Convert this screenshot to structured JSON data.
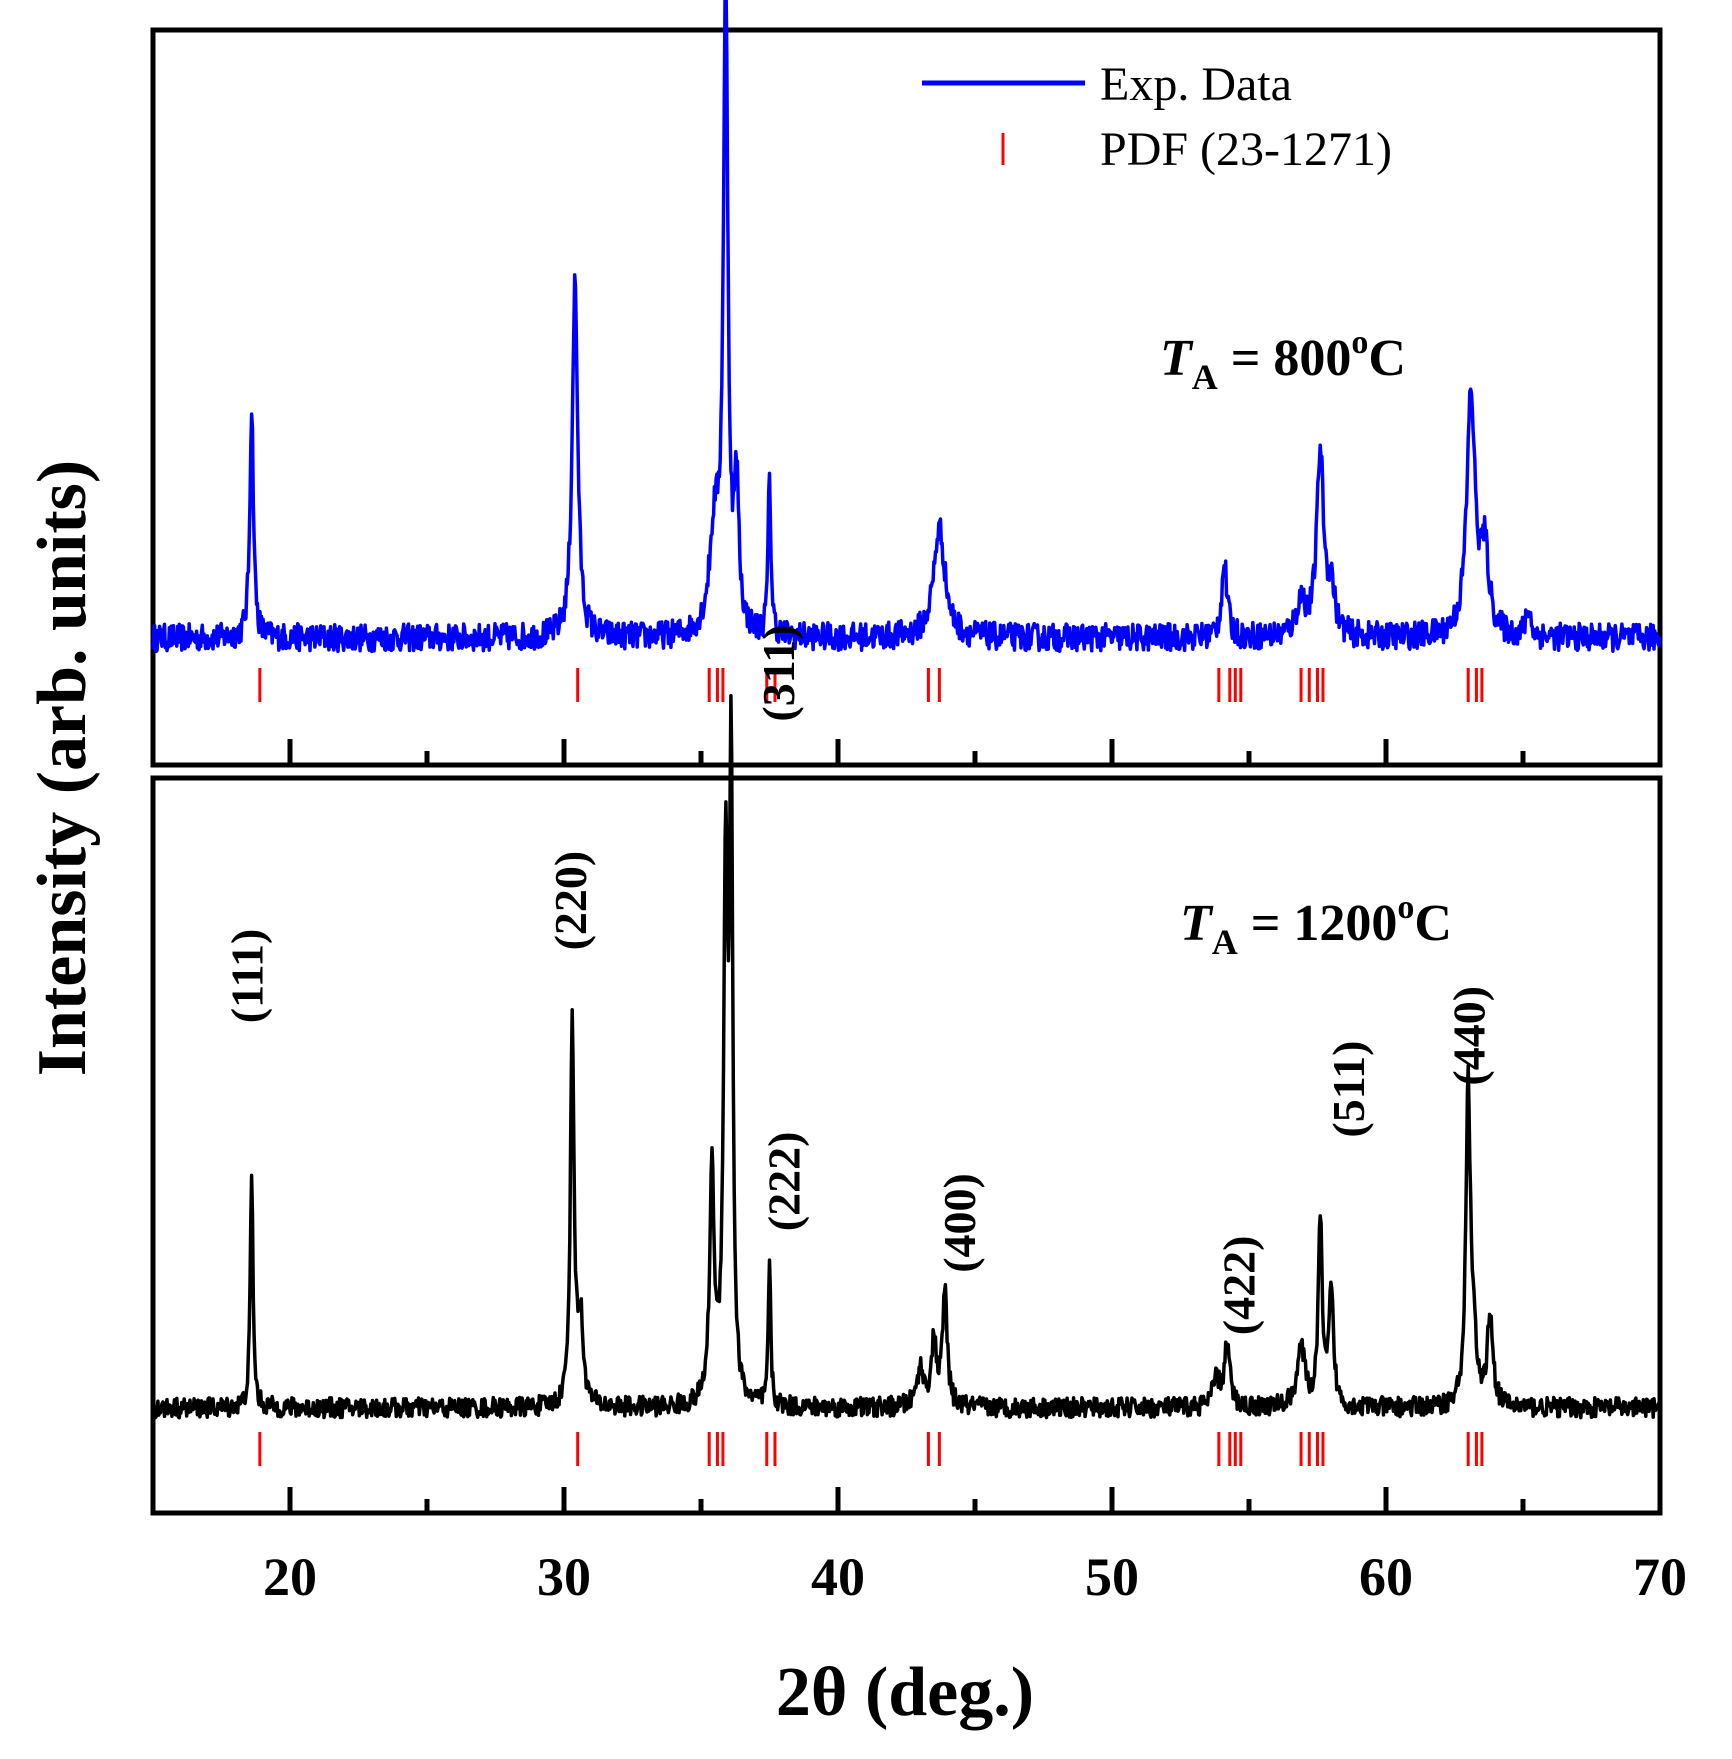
{
  "chart_data": {
    "type": "line",
    "xlabel": "2θ (deg.)",
    "ylabel": "Intensity (arb. units)",
    "xlim": [
      15,
      70
    ],
    "xticks": [
      20,
      30,
      40,
      50,
      60,
      70
    ],
    "x_minor_ticks": [
      25,
      35,
      45,
      55,
      65
    ],
    "legend": [
      {
        "label": "Exp. Data",
        "color": "#0000ff",
        "style": "line"
      },
      {
        "label": "PDF (23-1271)",
        "color": "#ff0000",
        "style": "tick"
      }
    ],
    "reference_lines": [
      18.9,
      30.5,
      35.3,
      35.6,
      35.8,
      37.4,
      37.7,
      43.3,
      43.7,
      53.9,
      54.3,
      54.5,
      54.7,
      56.9,
      57.2,
      57.5,
      57.7,
      63.0,
      63.3,
      63.5
    ],
    "panels": [
      {
        "name": "800",
        "annotation_T": "T",
        "annotation_sub": "A",
        "annotation_value": " = 800",
        "annotation_sup": "o",
        "annotation_unit": "C",
        "color": "#0000ff",
        "baseline": 0.1,
        "noise": 0.01,
        "peaks": [
          {
            "x": 18.6,
            "height": 1.0,
            "width": 0.08
          },
          {
            "x": 30.4,
            "height": 1.55,
            "width": 0.12
          },
          {
            "x": 35.5,
            "height": 0.45,
            "width": 0.22
          },
          {
            "x": 35.9,
            "height": 2.75,
            "width": 0.1
          },
          {
            "x": 36.3,
            "height": 0.6,
            "width": 0.1
          },
          {
            "x": 37.5,
            "height": 0.7,
            "width": 0.06
          },
          {
            "x": 43.7,
            "height": 0.48,
            "width": 0.25
          },
          {
            "x": 54.1,
            "height": 0.32,
            "width": 0.12
          },
          {
            "x": 56.9,
            "height": 0.15,
            "width": 0.2
          },
          {
            "x": 57.6,
            "height": 0.8,
            "width": 0.15
          },
          {
            "x": 58.0,
            "height": 0.2,
            "width": 0.15
          },
          {
            "x": 63.1,
            "height": 1.05,
            "width": 0.18
          },
          {
            "x": 63.6,
            "height": 0.35,
            "width": 0.18
          },
          {
            "x": 65.2,
            "height": 0.12,
            "width": 0.1
          }
        ]
      },
      {
        "name": "1200",
        "annotation_T": "T",
        "annotation_sub": "A",
        "annotation_value": " = 1200",
        "annotation_sup": "o",
        "annotation_unit": "C",
        "color": "#000000",
        "baseline": 0.1,
        "noise": 0.008,
        "peaks": [
          {
            "x": 18.6,
            "height": 1.12,
            "width": 0.06
          },
          {
            "x": 30.3,
            "height": 1.85,
            "width": 0.08
          },
          {
            "x": 30.6,
            "height": 0.4,
            "width": 0.12
          },
          {
            "x": 35.4,
            "height": 1.1,
            "width": 0.1
          },
          {
            "x": 35.9,
            "height": 2.55,
            "width": 0.09
          },
          {
            "x": 36.1,
            "height": 3.0,
            "width": 0.07
          },
          {
            "x": 37.5,
            "height": 0.72,
            "width": 0.05
          },
          {
            "x": 43.0,
            "height": 0.18,
            "width": 0.15
          },
          {
            "x": 43.5,
            "height": 0.3,
            "width": 0.12
          },
          {
            "x": 43.9,
            "height": 0.55,
            "width": 0.1
          },
          {
            "x": 53.8,
            "height": 0.13,
            "width": 0.15
          },
          {
            "x": 54.2,
            "height": 0.3,
            "width": 0.12
          },
          {
            "x": 56.9,
            "height": 0.28,
            "width": 0.18
          },
          {
            "x": 57.6,
            "height": 0.92,
            "width": 0.08
          },
          {
            "x": 58.0,
            "height": 0.55,
            "width": 0.1
          },
          {
            "x": 63.0,
            "height": 1.55,
            "width": 0.1
          },
          {
            "x": 63.2,
            "height": 0.25,
            "width": 0.1
          },
          {
            "x": 63.8,
            "height": 0.45,
            "width": 0.12
          }
        ],
        "hkl_labels": [
          {
            "text": "(111)",
            "x": 19.0,
            "y": 1.95
          },
          {
            "text": "(220)",
            "x": 30.8,
            "y": 2.3
          },
          {
            "text": "(311)",
            "x": 38.4,
            "y": 3.4
          },
          {
            "text": "(222)",
            "x": 38.6,
            "y": 0.95
          },
          {
            "text": "(400)",
            "x": 45.0,
            "y": 0.75
          },
          {
            "text": "(422)",
            "x": 55.2,
            "y": 0.45
          },
          {
            "text": "(511)",
            "x": 59.2,
            "y": 1.4
          },
          {
            "text": "(440)",
            "x": 63.6,
            "y": 1.65
          }
        ]
      }
    ]
  }
}
